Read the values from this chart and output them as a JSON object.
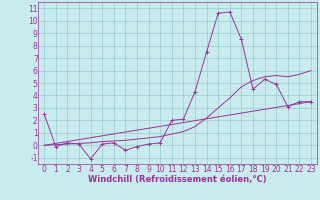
{
  "xlabel": "Windchill (Refroidissement éolien,°C)",
  "background_color": "#c8ecee",
  "line_color": "#993399",
  "grid_color": "#99cccc",
  "xlim": [
    -0.5,
    23.5
  ],
  "ylim": [
    -1.5,
    11.5
  ],
  "xticks": [
    0,
    1,
    2,
    3,
    4,
    5,
    6,
    7,
    8,
    9,
    10,
    11,
    12,
    13,
    14,
    15,
    16,
    17,
    18,
    19,
    20,
    21,
    22,
    23
  ],
  "yticks": [
    -1,
    0,
    1,
    2,
    3,
    4,
    5,
    6,
    7,
    8,
    9,
    10,
    11
  ],
  "line1_x": [
    0,
    1,
    2,
    3,
    4,
    5,
    6,
    7,
    8,
    9,
    10,
    11,
    12,
    13,
    14,
    15,
    16,
    17,
    18,
    19,
    20,
    21,
    22,
    23
  ],
  "line1_y": [
    2.5,
    -0.1,
    0.2,
    0.1,
    -1.1,
    0.1,
    0.2,
    -0.4,
    -0.1,
    0.1,
    0.2,
    2.0,
    2.1,
    4.3,
    7.5,
    10.6,
    10.7,
    8.5,
    4.5,
    5.3,
    4.9,
    3.1,
    3.5,
    3.5
  ],
  "line2_x": [
    0,
    23
  ],
  "line2_y": [
    0.0,
    3.5
  ],
  "line3_x": [
    0,
    1,
    2,
    3,
    4,
    5,
    6,
    7,
    8,
    9,
    10,
    11,
    12,
    13,
    14,
    15,
    16,
    17,
    18,
    19,
    20,
    21,
    22,
    23
  ],
  "line3_y": [
    0.0,
    0.05,
    0.1,
    0.15,
    0.2,
    0.3,
    0.35,
    0.4,
    0.5,
    0.6,
    0.7,
    0.9,
    1.1,
    1.5,
    2.2,
    3.0,
    3.8,
    4.7,
    5.2,
    5.5,
    5.6,
    5.5,
    5.7,
    6.0
  ],
  "tick_fontsize": 5.5,
  "xlabel_fontsize": 6,
  "marker": "+"
}
